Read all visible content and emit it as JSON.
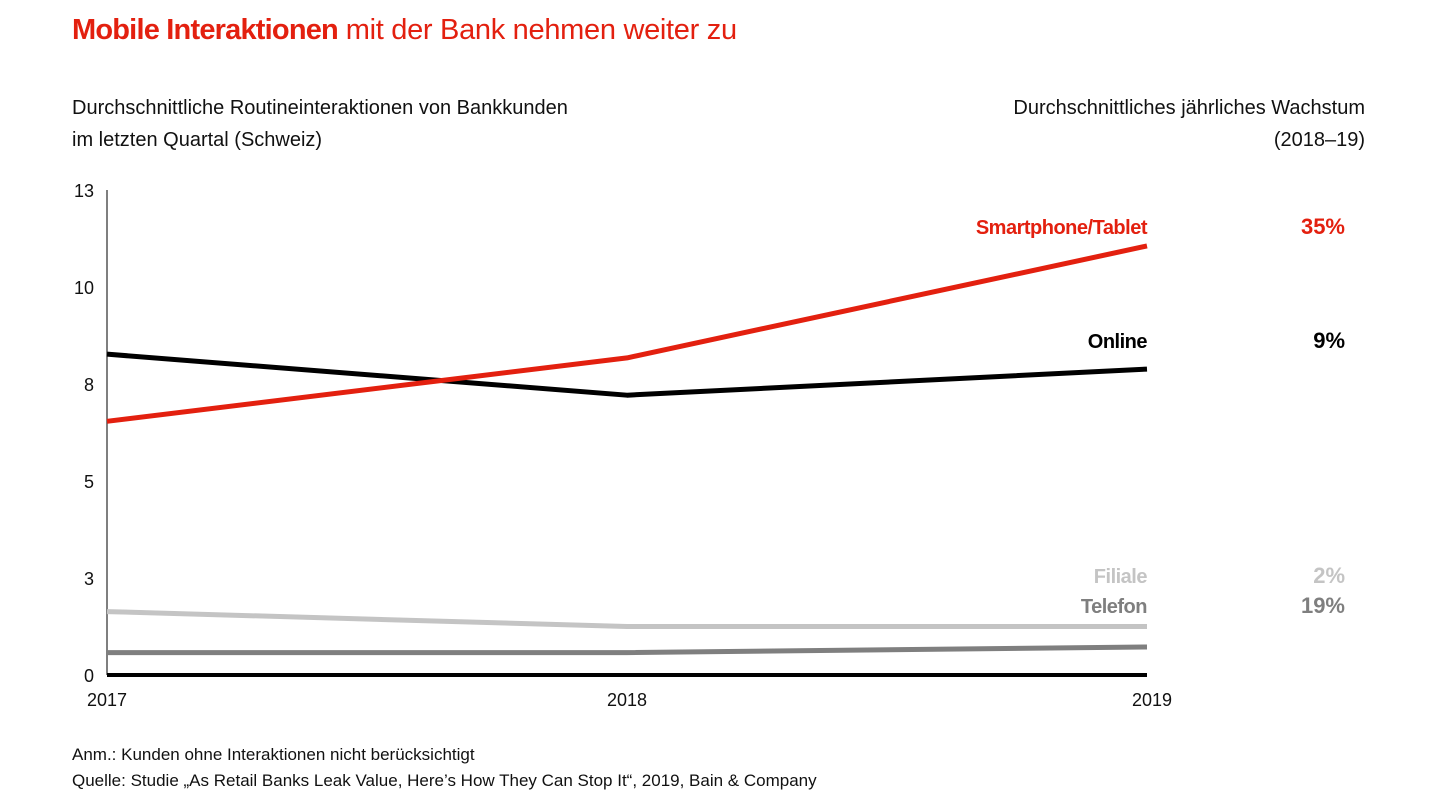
{
  "title": {
    "bold": "Mobile Interaktionen",
    "regular": " mit der Bank nehmen weiter zu"
  },
  "subtitle_left": {
    "line1": "Durchschnittliche Routineinteraktionen von Bankkunden",
    "line2": "im letzten Quartal (Schweiz)"
  },
  "subtitle_right": {
    "line1": "Durchschnittliches jährliches Wachstum",
    "line2": "(2018–19)"
  },
  "footnote": {
    "note": "Anm.: Kunden ohne Interaktionen nicht berücksichtigt",
    "source": "Quelle: Studie „As Retail Banks Leak Value, Here’s How They Can Stop It“, 2019, Bain & Company"
  },
  "chart_data": {
    "type": "line",
    "title": "Mobile Interaktionen mit der Bank nehmen weiter zu",
    "ylabel": "Durchschnittliche Routineinteraktionen von Bankkunden im letzten Quartal (Schweiz)",
    "xlabel": "",
    "x": [
      "2017",
      "2018",
      "2019"
    ],
    "ylim": [
      0,
      13
    ],
    "yticks": [
      0,
      2.6,
      5.2,
      7.8,
      10.4,
      13
    ],
    "ytick_labels": [
      "0",
      "3",
      "5",
      "8",
      "10",
      "13"
    ],
    "grid": false,
    "legend": "inline-right",
    "growth_header": "Durchschnittliches jährliches Wachstum (2018–19)",
    "series": [
      {
        "name": "Smartphone/Tablet",
        "color": "#e3200f",
        "values": [
          6.8,
          8.5,
          11.5
        ],
        "growth": "35%"
      },
      {
        "name": "Online",
        "color": "#000000",
        "values": [
          8.6,
          7.5,
          8.2
        ],
        "growth": "9%"
      },
      {
        "name": "Filiale",
        "color": "#c4c4c4",
        "values": [
          1.7,
          1.3,
          1.3
        ],
        "growth": "2%"
      },
      {
        "name": "Telefon",
        "color": "#7f7f7f",
        "values": [
          0.6,
          0.6,
          0.75
        ],
        "growth": "19%"
      }
    ]
  }
}
